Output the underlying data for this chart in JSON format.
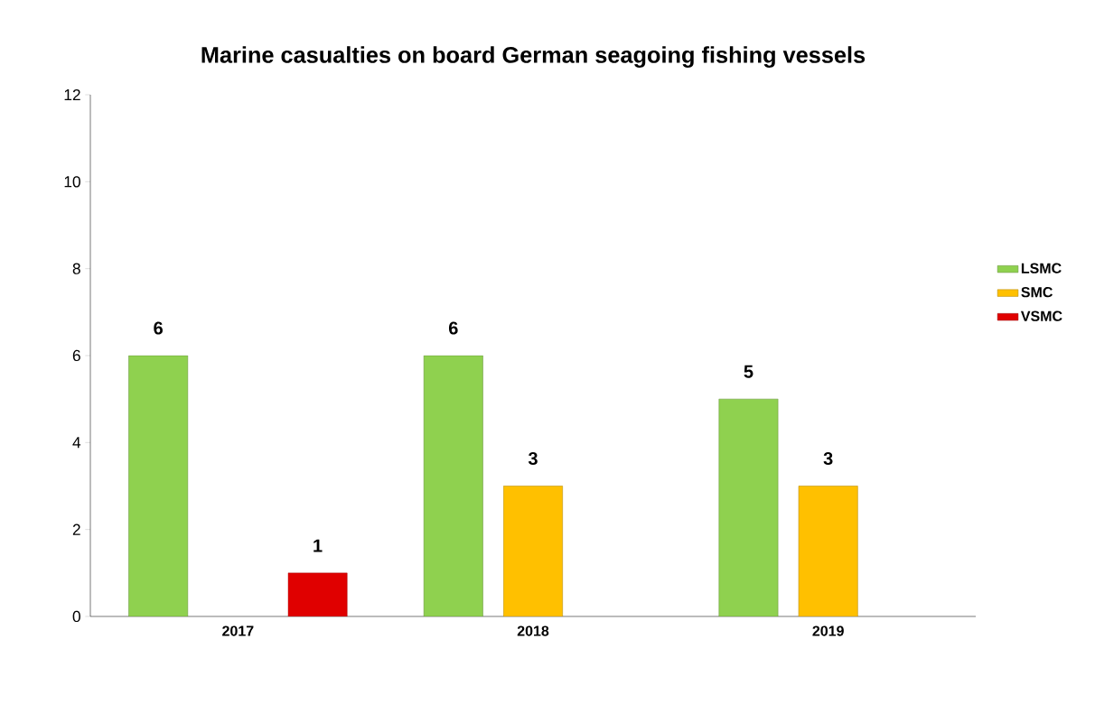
{
  "chart_data": {
    "type": "bar",
    "title": "Marine casualties on board German seagoing fishing vessels",
    "categories": [
      "2017",
      "2018",
      "2019"
    ],
    "series": [
      {
        "name": "LSMC",
        "color": "#8fd14f",
        "values": [
          6,
          6,
          5
        ]
      },
      {
        "name": "SMC",
        "color": "#ffc000",
        "values": [
          null,
          3,
          3
        ]
      },
      {
        "name": "VSMC",
        "color": "#e00000",
        "values": [
          1,
          null,
          null
        ]
      }
    ],
    "ylim": [
      0,
      12
    ],
    "yticks": [
      0,
      2,
      4,
      6,
      8,
      10,
      12
    ],
    "data_labels": true,
    "legend": "right",
    "grid": false
  }
}
